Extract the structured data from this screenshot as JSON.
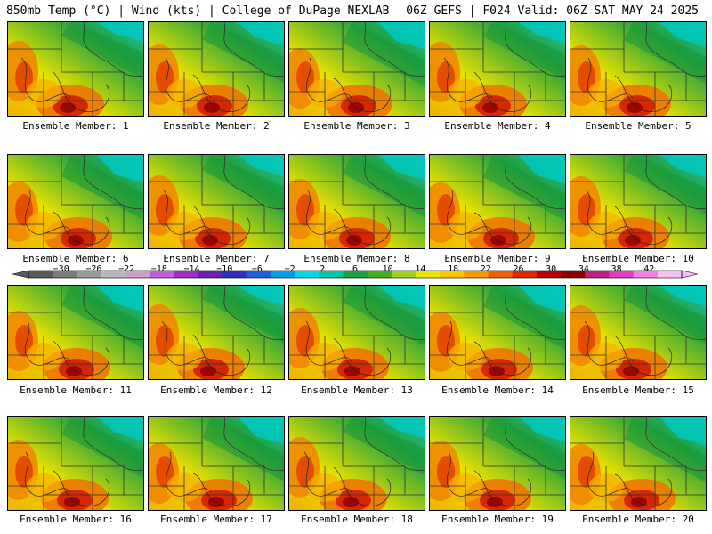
{
  "header": {
    "left": "850mb Temp (°C) | Wind (kts) | College of DuPage NEXLAB",
    "right": "06Z GEFS | F024 Valid: 06Z SAT MAY 24 2025"
  },
  "members": [
    "Ensemble Member: 1",
    "Ensemble Member: 2",
    "Ensemble Member: 3",
    "Ensemble Member: 4",
    "Ensemble Member: 5",
    "Ensemble Member: 6",
    "Ensemble Member: 7",
    "Ensemble Member: 8",
    "Ensemble Member: 9",
    "Ensemble Member: 10",
    "Ensemble Member: 11",
    "Ensemble Member: 12",
    "Ensemble Member: 13",
    "Ensemble Member: 14",
    "Ensemble Member: 15",
    "Ensemble Member: 16",
    "Ensemble Member: 17",
    "Ensemble Member: 18",
    "Ensemble Member: 19",
    "Ensemble Member: 20"
  ],
  "colorbar": {
    "tick_labels": [
      "−30",
      "−26",
      "−22",
      "−18",
      "−14",
      "−10",
      "−6",
      "−2",
      "2",
      "6",
      "10",
      "14",
      "18",
      "22",
      "26",
      "30",
      "34",
      "38",
      "42"
    ],
    "tick_values": [
      -30,
      -26,
      -22,
      -18,
      -14,
      -10,
      -6,
      -2,
      2,
      6,
      10,
      14,
      18,
      22,
      26,
      30,
      34,
      38,
      42
    ],
    "colors": [
      "#5a5a5a",
      "#7a7a7a",
      "#9a9a9a",
      "#b8b8b8",
      "#c8a0c8",
      "#c060d8",
      "#a030c8",
      "#6a20b0",
      "#3030c0",
      "#2060e0",
      "#00a0e8",
      "#00d8e8",
      "#00c8a0",
      "#20a040",
      "#40b020",
      "#a0d020",
      "#e8e800",
      "#f8c800",
      "#f89a00",
      "#f06000",
      "#e02800",
      "#b80000",
      "#8a0000",
      "#c02080",
      "#e040c0",
      "#f080e0",
      "#f8c0f0"
    ],
    "range": [
      -34,
      46
    ]
  }
}
